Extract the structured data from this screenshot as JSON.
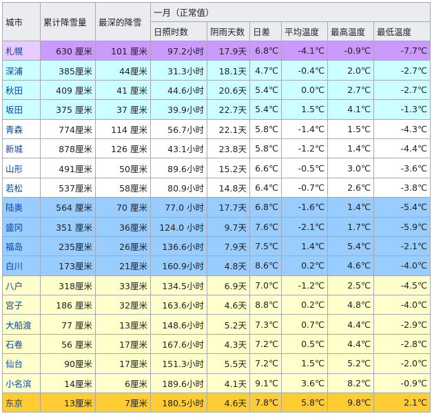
{
  "headers": {
    "city": "城市",
    "total_snow": "累计降雪量",
    "max_depth": "最深的降雪",
    "january": "一月（正常值）",
    "sunshine": "日照时数",
    "rain_days": "阴雨天数",
    "diurnal": "日差",
    "avg_temp": "平均温度",
    "max_temp": "最高温度",
    "min_temp": "最低温度"
  },
  "group_colors": {
    "purple": "#cc99ff",
    "cyan": "#ccffff",
    "white": "#ffffff",
    "blue": "#99ccff",
    "yellow": "#ffffcc",
    "orange": "#ffcc33"
  },
  "rows": [
    {
      "city": "札幌",
      "total": "630 厘米",
      "depth": "101 厘米",
      "sun": "97.2小时",
      "rain": "17.9天",
      "diff": "6.8℃",
      "avg": "-4.1℃",
      "max": "-0.9℃",
      "min": "-7.7℃",
      "group": "purple"
    },
    {
      "city": "深浦",
      "total": "385厘米",
      "depth": "44厘米",
      "sun": "31.3小时",
      "rain": "18.1天",
      "diff": "4.7℃",
      "avg": "-0.4℃",
      "max": "2.0℃",
      "min": "-2.7℃",
      "group": "cyan"
    },
    {
      "city": "秋田",
      "total": "409 厘米",
      "depth": "41 厘米",
      "sun": "44.6小时",
      "rain": "20.6天",
      "diff": "5.4℃",
      "avg": "0.0℃",
      "max": "2.7℃",
      "min": "-2.7℃",
      "group": "cyan"
    },
    {
      "city": "坂田",
      "total": "375 厘米",
      "depth": "37 厘米",
      "sun": "39.9小时",
      "rain": "22.7天",
      "diff": "5.4℃",
      "avg": "1.5℃",
      "max": "4.1℃",
      "min": "-1.3℃",
      "group": "cyan"
    },
    {
      "city": "青森",
      "total": "774厘米",
      "depth": "114 厘米",
      "sun": "56.7小时",
      "rain": "22.1天",
      "diff": "5.8℃",
      "avg": "-1.4℃",
      "max": "1.5℃",
      "min": "-4.3℃",
      "group": "white"
    },
    {
      "city": "新城",
      "total": "878厘米",
      "depth": "126 厘米",
      "sun": "43.1小时",
      "rain": "23.8天",
      "diff": "5.8℃",
      "avg": "-1.2℃",
      "max": "1.4℃",
      "min": "-4.4℃",
      "group": "white"
    },
    {
      "city": "山形",
      "total": "491厘米",
      "depth": "50厘米",
      "sun": "89.6小时",
      "rain": "15.2天",
      "diff": "6.6℃",
      "avg": "-0.5℃",
      "max": "3.0℃",
      "min": "-3.6℃",
      "group": "white"
    },
    {
      "city": "若松",
      "total": "537厘米",
      "depth": "58厘米",
      "sun": "80.9小时",
      "rain": "14.8天",
      "diff": "6.4℃",
      "avg": "-0.7℃",
      "max": "2.6℃",
      "min": "-3.8℃",
      "group": "white"
    },
    {
      "city": "陆奥",
      "total": "564 厘米",
      "depth": "70 厘米",
      "sun": "77.0 小时",
      "rain": "17.7天",
      "diff": "6.8℃",
      "avg": "-1.6℃",
      "max": "1.4℃",
      "min": "-5.4℃",
      "group": "blue"
    },
    {
      "city": "盛冈",
      "total": "351 厘米",
      "depth": "36厘米",
      "sun": "124.0 小时",
      "rain": "9.7天",
      "diff": "7.6℃",
      "avg": "-2.1℃",
      "max": "1.7℃",
      "min": "-5.9℃",
      "group": "blue"
    },
    {
      "city": "福岛",
      "total": "235厘米",
      "depth": "26厘米",
      "sun": "136.6小时",
      "rain": "7.9天",
      "diff": "7.5℃",
      "avg": "1.4℃",
      "max": "5.4℃",
      "min": "-2.1℃",
      "group": "blue"
    },
    {
      "city": "白川",
      "total": "173厘米",
      "depth": "21厘米",
      "sun": "160.9小时",
      "rain": "4.8天",
      "diff": "8.6℃",
      "avg": "0.2℃",
      "max": "4.6℃",
      "min": "-4.0℃",
      "group": "blue"
    },
    {
      "city": "八户",
      "total": "318厘米",
      "depth": "33厘米",
      "sun": "134.5小时",
      "rain": "6.9天",
      "diff": "7.0℃",
      "avg": "-1.2℃",
      "max": "2.5℃",
      "min": "-4.5℃",
      "group": "yellow"
    },
    {
      "city": "宫子",
      "total": "186 厘米",
      "depth": "32厘米",
      "sun": "163.6小时",
      "rain": "4.6天",
      "diff": "8.8℃",
      "avg": "0.2℃",
      "max": "4.8℃",
      "min": "-4.0℃",
      "group": "yellow"
    },
    {
      "city": "大船渡",
      "total": "77 厘米",
      "depth": "13厘米",
      "sun": "148.6小时",
      "rain": "5.2天",
      "diff": "7.3℃",
      "avg": "0.7℃",
      "max": "4.4℃",
      "min": "-2.9℃",
      "group": "yellow"
    },
    {
      "city": "石卷",
      "total": "56 厘米",
      "depth": "17厘米",
      "sun": "167.6小时",
      "rain": "4.3天",
      "diff": "7.2℃",
      "avg": "0.5℃",
      "max": "4.4℃",
      "min": "-2.8℃",
      "group": "yellow"
    },
    {
      "city": "仙台",
      "total": "90厘米",
      "depth": "17厘米",
      "sun": "151.3小时",
      "rain": "5.5天",
      "diff": "7.2℃",
      "avg": "1.5℃",
      "max": "5.2℃",
      "min": "-2.0℃",
      "group": "yellow"
    },
    {
      "city": "小名滨",
      "total": "14厘米",
      "depth": "6厘米",
      "sun": "189.6小时",
      "rain": "4.1天",
      "diff": "9.1℃",
      "avg": "3.6℃",
      "max": "8.2℃",
      "min": "-0.9℃",
      "group": "yellow"
    },
    {
      "city": "东京",
      "total": "13厘米",
      "depth": "7厘米",
      "sun": "180.5小时",
      "rain": "4.6天",
      "diff": "7.8℃",
      "avg": "5.8℃",
      "max": "9.8℃",
      "min": "2.1℃",
      "group": "orange"
    }
  ]
}
